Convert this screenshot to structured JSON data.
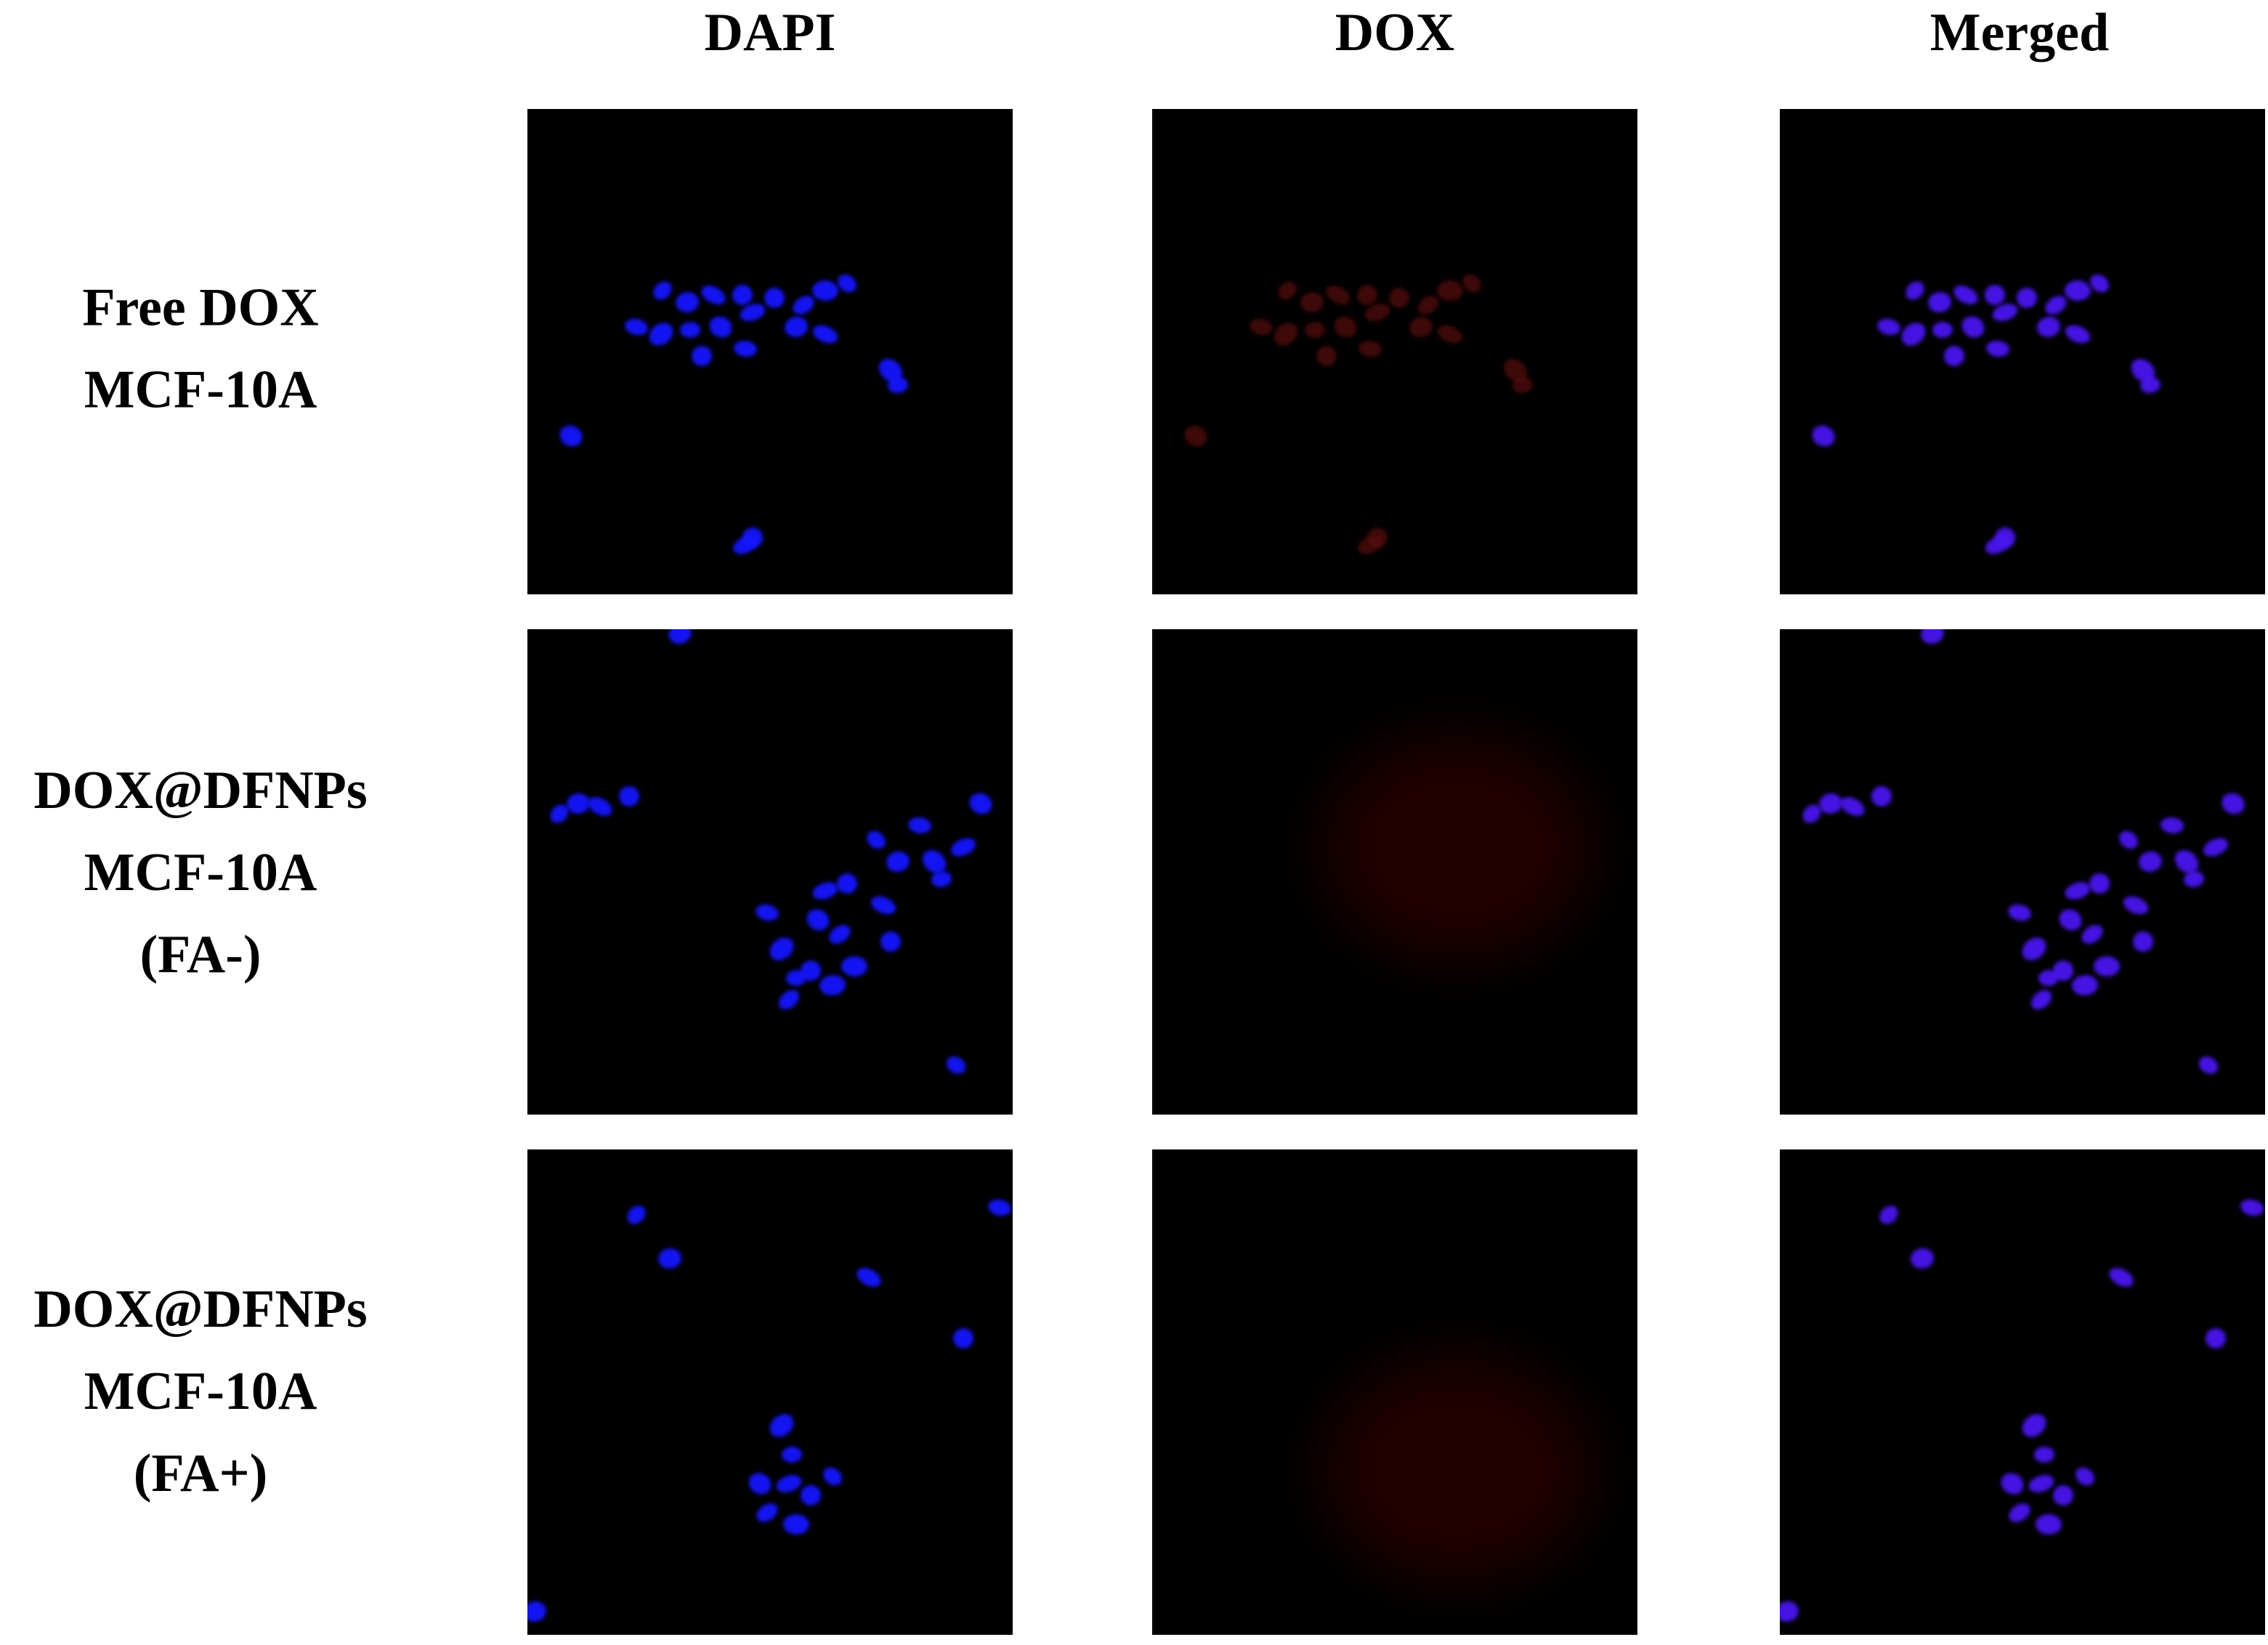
{
  "column_headers": [
    "DAPI",
    "DOX",
    "Merged"
  ],
  "row_labels": [
    [
      "Free DOX",
      "MCF-10A"
    ],
    [
      "DOX@DFNPs",
      "MCF-10A",
      "(FA-)"
    ],
    [
      "DOX@DFNPs",
      "MCF-10A",
      "(FA+)"
    ]
  ]
}
